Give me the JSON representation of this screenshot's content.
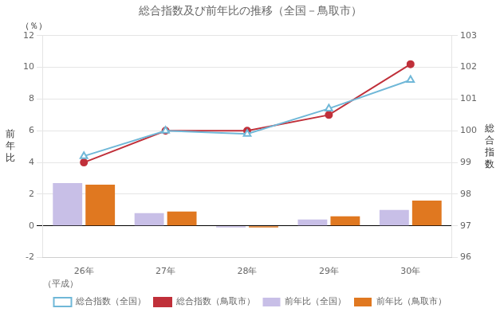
{
  "chart_data": {
    "type": "bar",
    "title": "総合指数及び前年比の推移（全国－鳥取市）",
    "categories": [
      "26年",
      "27年",
      "28年",
      "29年",
      "30年"
    ],
    "x_label": "（平成）",
    "y_label": "前\n年\n比",
    "y2_label": "総\n合\n指\n数",
    "annotations": [
      "（％）"
    ],
    "series": [
      {
        "name": "前年比（全国）",
        "type": "bar",
        "color": "#c8bfe7",
        "values": [
          2.7,
          0.8,
          -0.1,
          0.4,
          1.0
        ]
      },
      {
        "name": "前年比（鳥取市）",
        "type": "bar",
        "color": "#e07820",
        "values": [
          2.6,
          0.9,
          -0.1,
          0.6,
          1.6
        ]
      },
      {
        "name": "総合指数（全国）",
        "type": "line",
        "axis": "y2",
        "marker": "triangle",
        "color": "#70b8d8",
        "values": [
          99.2,
          100.0,
          99.9,
          100.7,
          101.6
        ]
      },
      {
        "name": "総合指数（鳥取市）",
        "type": "line",
        "axis": "y2",
        "marker": "circle",
        "color": "#c0303a",
        "values": [
          99.0,
          100.0,
          100.0,
          100.5,
          102.1
        ]
      }
    ],
    "ylim": [
      -2.0,
      12.0
    ],
    "yticks": [
      -2.0,
      0.0,
      2.0,
      4.0,
      6.0,
      8.0,
      10.0,
      12.0
    ],
    "y2lim": [
      96,
      103
    ],
    "y2ticks": [
      96,
      97,
      98,
      99,
      100,
      101,
      102,
      103
    ],
    "grid": true,
    "legend": "bottom"
  }
}
